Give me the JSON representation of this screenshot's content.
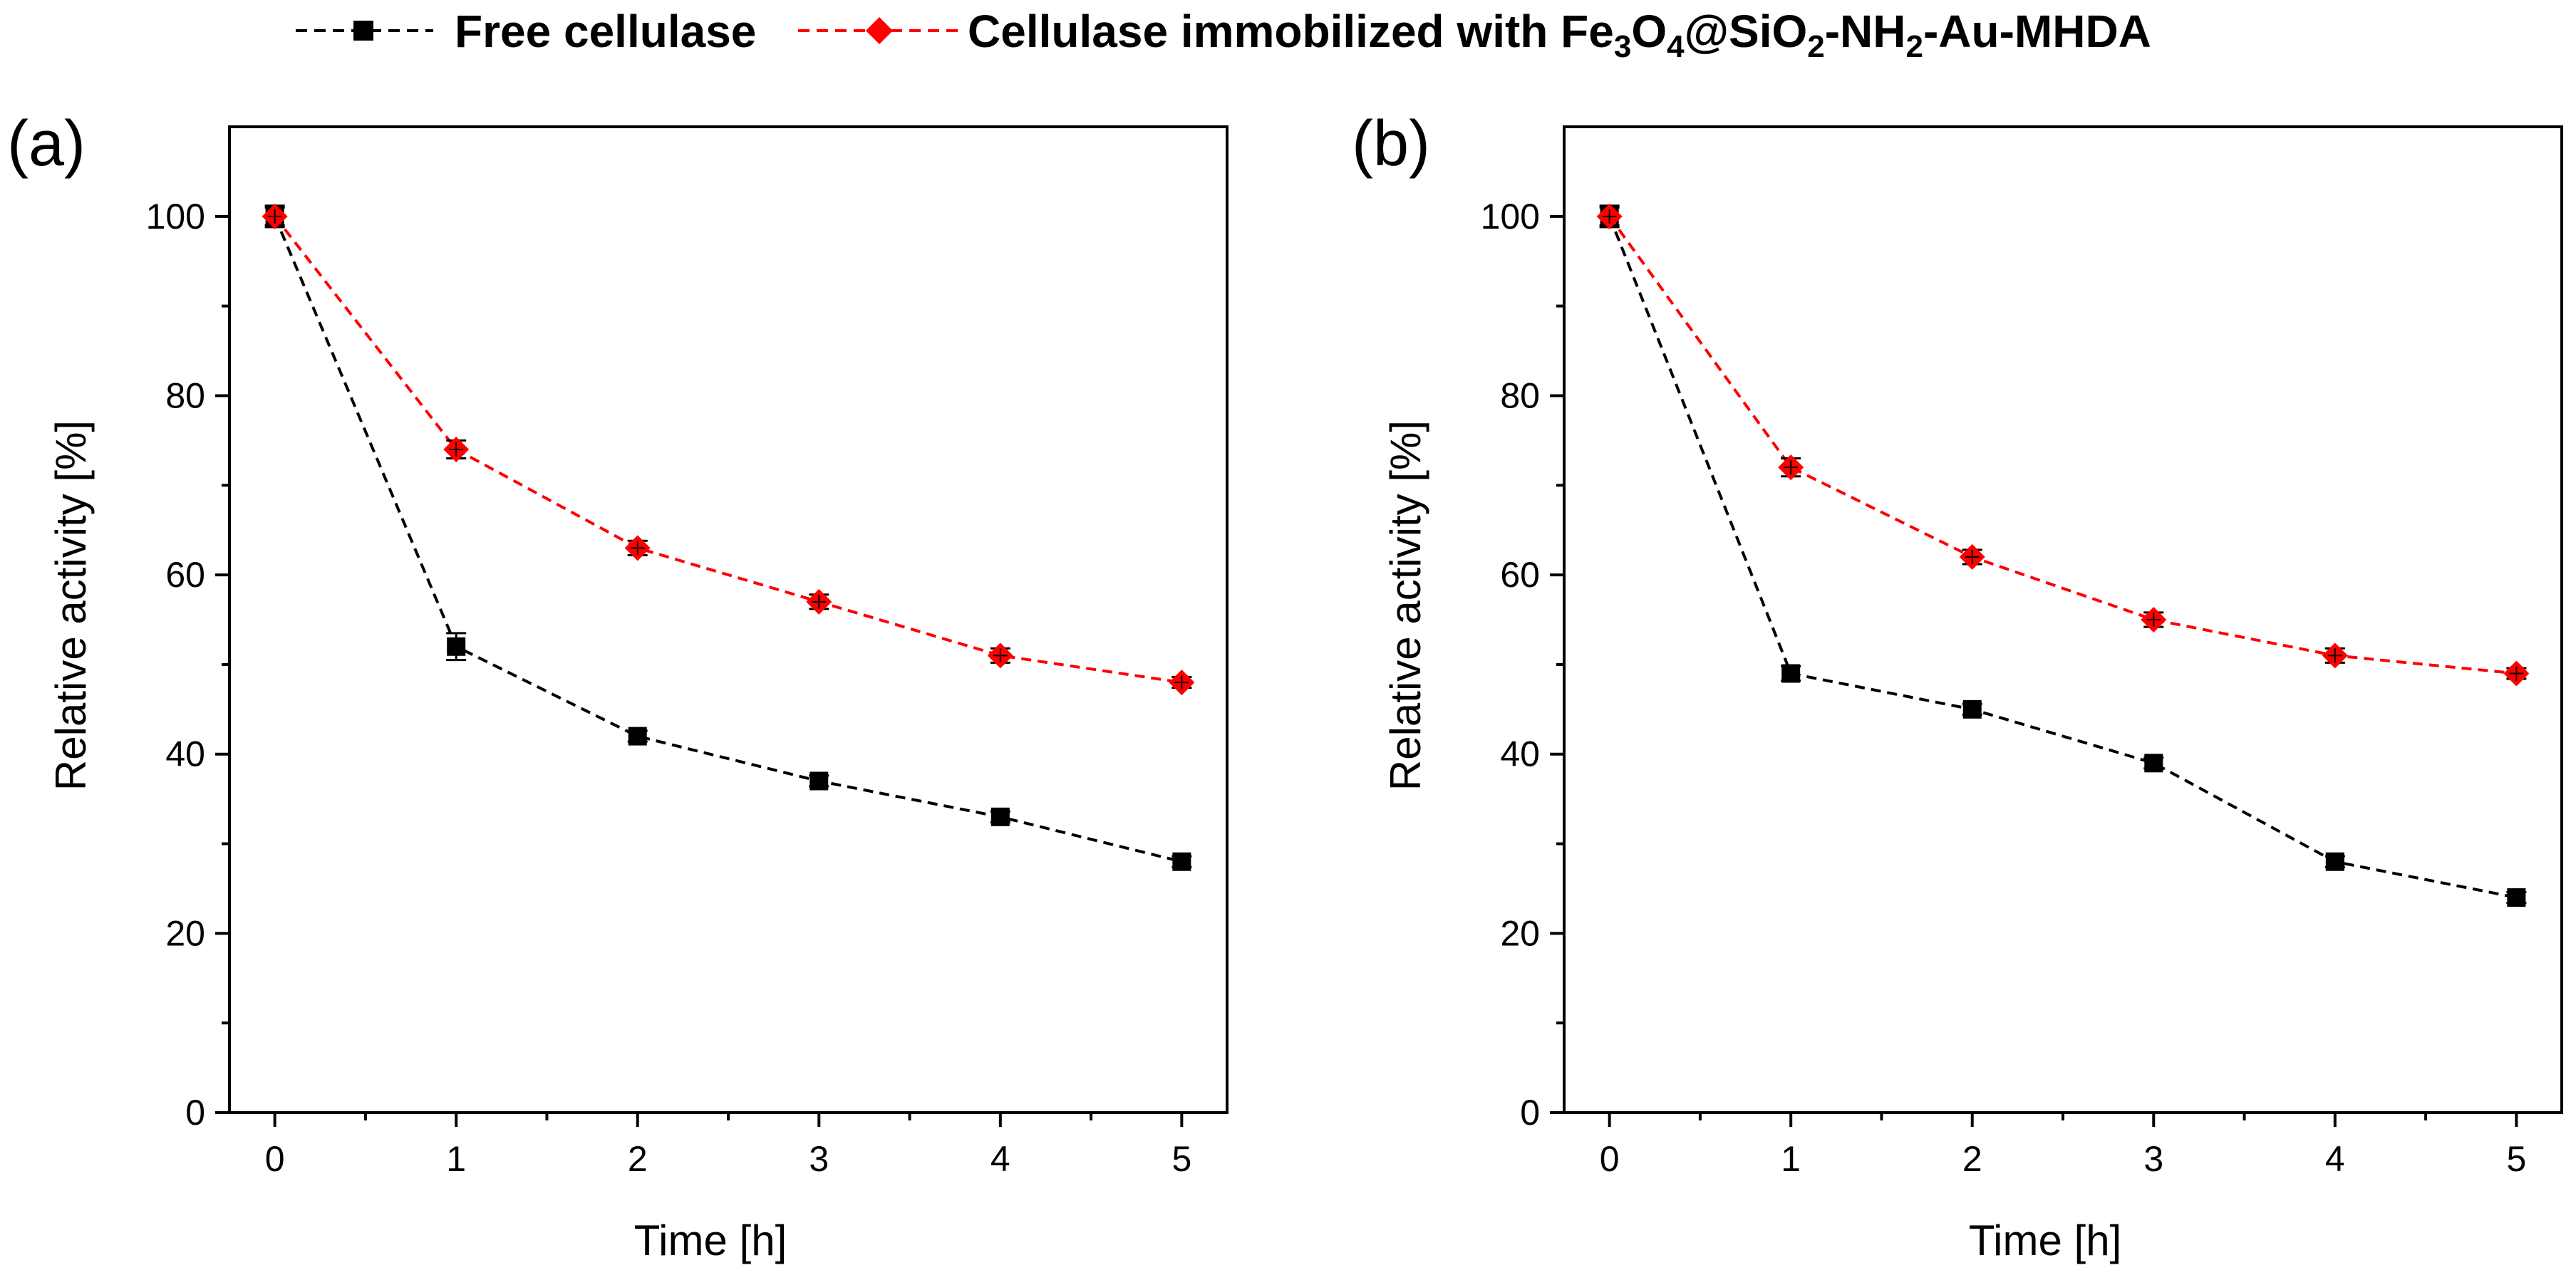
{
  "legend": {
    "entries": [
      {
        "label": "Free cellulase",
        "color": "#000000",
        "marker": "square"
      },
      {
        "label": "Cellulase immobilized with ",
        "color": "#ff0000",
        "marker": "diamond",
        "formula_parts": [
          {
            "t": "Fe"
          },
          {
            "t": "3",
            "sub": true
          },
          {
            "t": "O"
          },
          {
            "t": "4",
            "sub": true
          },
          {
            "t": "@SiO"
          },
          {
            "t": "2",
            "sub": true
          },
          {
            "t": "-NH"
          },
          {
            "t": "2",
            "sub": true
          },
          {
            "t": "-Au-MHDA"
          }
        ]
      }
    ]
  },
  "chart_data": [
    {
      "type": "line",
      "panel_label": "(a)",
      "xlabel": "Time [h]",
      "ylabel": "Relative activity [%]",
      "x": [
        0,
        1,
        2,
        3,
        4,
        5
      ],
      "xlim": [
        -0.25,
        5.25
      ],
      "ylim": [
        0,
        110
      ],
      "xticks": [
        0,
        1,
        2,
        3,
        4,
        5
      ],
      "yticks": [
        0,
        20,
        40,
        60,
        80,
        100
      ],
      "series": [
        {
          "name": "Free cellulase",
          "color": "#000000",
          "marker": "square",
          "values": [
            100,
            52,
            42,
            37,
            33,
            28
          ],
          "errors": [
            1.2,
            1.5,
            0.6,
            0.6,
            0.6,
            0.6
          ]
        },
        {
          "name": "Cellulase immobilized with Fe3O4@SiO2-NH2-Au-MHDA",
          "color": "#ff0000",
          "marker": "diamond",
          "values": [
            100,
            74,
            63,
            57,
            51,
            48
          ],
          "errors": [
            1.0,
            1.0,
            0.8,
            0.8,
            0.8,
            0.6
          ]
        }
      ]
    },
    {
      "type": "line",
      "panel_label": "(b)",
      "xlabel": "Time [h]",
      "ylabel": "Relative activity [%]",
      "x": [
        0,
        1,
        2,
        3,
        4,
        5
      ],
      "xlim": [
        -0.25,
        5.25
      ],
      "ylim": [
        0,
        110
      ],
      "xticks": [
        0,
        1,
        2,
        3,
        4,
        5
      ],
      "yticks": [
        0,
        20,
        40,
        60,
        80,
        100
      ],
      "series": [
        {
          "name": "Free cellulase",
          "color": "#000000",
          "marker": "square",
          "values": [
            100,
            49,
            45,
            39,
            28,
            24
          ],
          "errors": [
            1.2,
            0.8,
            0.6,
            0.6,
            0.6,
            0.6
          ]
        },
        {
          "name": "Cellulase immobilized with Fe3O4@SiO2-NH2-Au-MHDA",
          "color": "#ff0000",
          "marker": "diamond",
          "values": [
            100,
            72,
            62,
            55,
            51,
            49
          ],
          "errors": [
            1.0,
            1.0,
            0.8,
            0.8,
            0.8,
            0.6
          ]
        }
      ]
    }
  ]
}
